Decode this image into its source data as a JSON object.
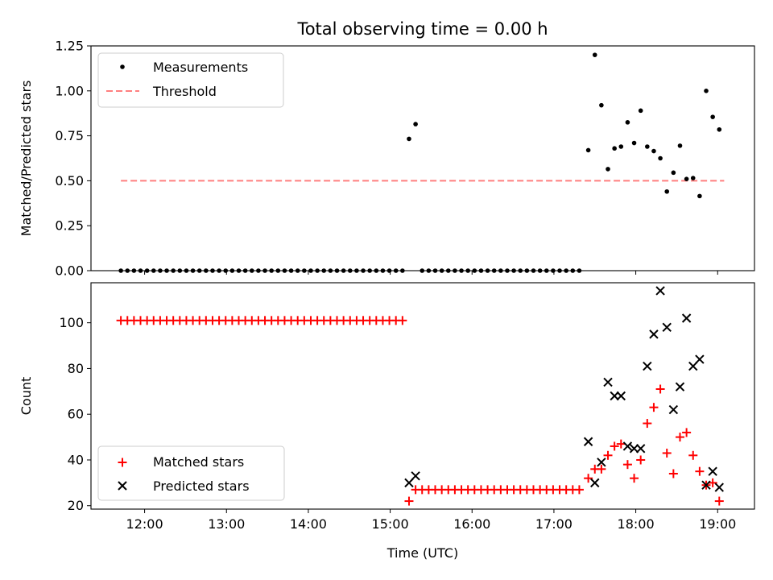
{
  "figure": {
    "title": "Total observing time = 0.00 h",
    "xlabel": "Time (UTC)",
    "x_ticks": [
      "12:00",
      "13:00",
      "14:00",
      "15:00",
      "16:00",
      "17:00",
      "18:00",
      "19:00"
    ],
    "x_tick_hours": [
      12,
      13,
      14,
      15,
      16,
      17,
      18,
      19
    ],
    "xlim_hours": [
      11.345,
      19.45
    ],
    "colors": {
      "measurement": "#000000",
      "threshold": "#ff7f7f",
      "matched": "#ff0000",
      "predicted": "#000000"
    }
  },
  "chart_data": [
    {
      "type": "scatter",
      "ylabel": "Matched/Predicted stars",
      "ylim": [
        0,
        1.25
      ],
      "y_ticks": [
        "0.00",
        "0.25",
        "0.50",
        "0.75",
        "1.00",
        "1.25"
      ],
      "legend": {
        "position": "top-left",
        "entries": [
          "Measurements",
          "Threshold"
        ]
      },
      "threshold": {
        "value": 0.5,
        "x_range_hours": [
          11.71,
          19.08
        ]
      },
      "series": [
        {
          "name": "Measurements",
          "points": [
            [
              11.71,
              0
            ],
            [
              11.79,
              0
            ],
            [
              11.87,
              0
            ],
            [
              11.95,
              0
            ],
            [
              12.03,
              0
            ],
            [
              12.11,
              0
            ],
            [
              12.19,
              0
            ],
            [
              12.27,
              0
            ],
            [
              12.35,
              0
            ],
            [
              12.43,
              0
            ],
            [
              12.51,
              0
            ],
            [
              12.59,
              0
            ],
            [
              12.67,
              0
            ],
            [
              12.75,
              0
            ],
            [
              12.83,
              0
            ],
            [
              12.91,
              0
            ],
            [
              12.99,
              0
            ],
            [
              13.07,
              0
            ],
            [
              13.15,
              0
            ],
            [
              13.23,
              0
            ],
            [
              13.31,
              0
            ],
            [
              13.39,
              0
            ],
            [
              13.47,
              0
            ],
            [
              13.55,
              0
            ],
            [
              13.63,
              0
            ],
            [
              13.71,
              0
            ],
            [
              13.79,
              0
            ],
            [
              13.87,
              0
            ],
            [
              13.95,
              0
            ],
            [
              14.03,
              0
            ],
            [
              14.11,
              0
            ],
            [
              14.19,
              0
            ],
            [
              14.27,
              0
            ],
            [
              14.35,
              0
            ],
            [
              14.43,
              0
            ],
            [
              14.51,
              0
            ],
            [
              14.59,
              0
            ],
            [
              14.67,
              0
            ],
            [
              14.75,
              0
            ],
            [
              14.83,
              0
            ],
            [
              14.91,
              0
            ],
            [
              14.99,
              0
            ],
            [
              15.07,
              0
            ],
            [
              15.15,
              0
            ],
            [
              15.23,
              0.733
            ],
            [
              15.31,
              0.815
            ],
            [
              15.39,
              0
            ],
            [
              15.47,
              0
            ],
            [
              15.55,
              0
            ],
            [
              15.63,
              0
            ],
            [
              15.71,
              0
            ],
            [
              15.79,
              0
            ],
            [
              15.87,
              0
            ],
            [
              15.95,
              0
            ],
            [
              16.03,
              0
            ],
            [
              16.11,
              0
            ],
            [
              16.19,
              0
            ],
            [
              16.27,
              0
            ],
            [
              16.35,
              0
            ],
            [
              16.43,
              0
            ],
            [
              16.51,
              0
            ],
            [
              16.59,
              0
            ],
            [
              16.67,
              0
            ],
            [
              16.75,
              0
            ],
            [
              16.83,
              0
            ],
            [
              16.91,
              0
            ],
            [
              16.99,
              0
            ],
            [
              17.07,
              0
            ],
            [
              17.15,
              0
            ],
            [
              17.23,
              0
            ],
            [
              17.31,
              0
            ],
            [
              17.42,
              0.67
            ],
            [
              17.5,
              1.2
            ],
            [
              17.58,
              0.92
            ],
            [
              17.66,
              0.565
            ],
            [
              17.74,
              0.68
            ],
            [
              17.82,
              0.69
            ],
            [
              17.9,
              0.825
            ],
            [
              17.98,
              0.71
            ],
            [
              18.06,
              0.89
            ],
            [
              18.14,
              0.69
            ],
            [
              18.22,
              0.665
            ],
            [
              18.3,
              0.625
            ],
            [
              18.38,
              0.44
            ],
            [
              18.46,
              0.545
            ],
            [
              18.54,
              0.695
            ],
            [
              18.62,
              0.51
            ],
            [
              18.7,
              0.515
            ],
            [
              18.78,
              0.415
            ],
            [
              18.86,
              1.0
            ],
            [
              18.94,
              0.855
            ],
            [
              19.02,
              0.785
            ]
          ]
        }
      ]
    },
    {
      "type": "scatter",
      "ylabel": "Count",
      "ylim": [
        18.5,
        117.5
      ],
      "y_ticks": [
        "20",
        "40",
        "60",
        "80",
        "100"
      ],
      "y_tick_values": [
        20,
        40,
        60,
        80,
        100
      ],
      "legend": {
        "position": "lower-left",
        "entries": [
          "Matched stars",
          "Predicted stars"
        ]
      },
      "series": [
        {
          "name": "Matched stars",
          "marker": "+",
          "points": [
            [
              11.71,
              101
            ],
            [
              11.79,
              101
            ],
            [
              11.87,
              101
            ],
            [
              11.95,
              101
            ],
            [
              12.03,
              101
            ],
            [
              12.11,
              101
            ],
            [
              12.19,
              101
            ],
            [
              12.27,
              101
            ],
            [
              12.35,
              101
            ],
            [
              12.43,
              101
            ],
            [
              12.51,
              101
            ],
            [
              12.59,
              101
            ],
            [
              12.67,
              101
            ],
            [
              12.75,
              101
            ],
            [
              12.83,
              101
            ],
            [
              12.91,
              101
            ],
            [
              12.99,
              101
            ],
            [
              13.07,
              101
            ],
            [
              13.15,
              101
            ],
            [
              13.23,
              101
            ],
            [
              13.31,
              101
            ],
            [
              13.39,
              101
            ],
            [
              13.47,
              101
            ],
            [
              13.55,
              101
            ],
            [
              13.63,
              101
            ],
            [
              13.71,
              101
            ],
            [
              13.79,
              101
            ],
            [
              13.87,
              101
            ],
            [
              13.95,
              101
            ],
            [
              14.03,
              101
            ],
            [
              14.11,
              101
            ],
            [
              14.19,
              101
            ],
            [
              14.27,
              101
            ],
            [
              14.35,
              101
            ],
            [
              14.43,
              101
            ],
            [
              14.51,
              101
            ],
            [
              14.59,
              101
            ],
            [
              14.67,
              101
            ],
            [
              14.75,
              101
            ],
            [
              14.83,
              101
            ],
            [
              14.91,
              101
            ],
            [
              14.99,
              101
            ],
            [
              15.07,
              101
            ],
            [
              15.15,
              101
            ],
            [
              15.23,
              22
            ],
            [
              15.31,
              27
            ],
            [
              15.39,
              27
            ],
            [
              15.47,
              27
            ],
            [
              15.55,
              27
            ],
            [
              15.63,
              27
            ],
            [
              15.71,
              27
            ],
            [
              15.79,
              27
            ],
            [
              15.87,
              27
            ],
            [
              15.95,
              27
            ],
            [
              16.03,
              27
            ],
            [
              16.11,
              27
            ],
            [
              16.19,
              27
            ],
            [
              16.27,
              27
            ],
            [
              16.35,
              27
            ],
            [
              16.43,
              27
            ],
            [
              16.51,
              27
            ],
            [
              16.59,
              27
            ],
            [
              16.67,
              27
            ],
            [
              16.75,
              27
            ],
            [
              16.83,
              27
            ],
            [
              16.91,
              27
            ],
            [
              16.99,
              27
            ],
            [
              17.07,
              27
            ],
            [
              17.15,
              27
            ],
            [
              17.23,
              27
            ],
            [
              17.31,
              27
            ],
            [
              17.42,
              32
            ],
            [
              17.5,
              36
            ],
            [
              17.58,
              36
            ],
            [
              17.66,
              42
            ],
            [
              17.74,
              46
            ],
            [
              17.82,
              47
            ],
            [
              17.9,
              38
            ],
            [
              17.98,
              32
            ],
            [
              18.06,
              40
            ],
            [
              18.14,
              56
            ],
            [
              18.22,
              63
            ],
            [
              18.3,
              71
            ],
            [
              18.38,
              43
            ],
            [
              18.46,
              34
            ],
            [
              18.54,
              50
            ],
            [
              18.62,
              52
            ],
            [
              18.7,
              42
            ],
            [
              18.78,
              35
            ],
            [
              18.86,
              29
            ],
            [
              18.94,
              30
            ],
            [
              19.02,
              22
            ]
          ]
        },
        {
          "name": "Predicted stars",
          "marker": "x",
          "points": [
            [
              15.23,
              30
            ],
            [
              15.31,
              33
            ],
            [
              17.42,
              48
            ],
            [
              17.5,
              30
            ],
            [
              17.58,
              39
            ],
            [
              17.66,
              74
            ],
            [
              17.74,
              68
            ],
            [
              17.82,
              68
            ],
            [
              17.9,
              46
            ],
            [
              17.98,
              45
            ],
            [
              18.06,
              45
            ],
            [
              18.14,
              81
            ],
            [
              18.22,
              95
            ],
            [
              18.3,
              114
            ],
            [
              18.38,
              98
            ],
            [
              18.46,
              62
            ],
            [
              18.54,
              72
            ],
            [
              18.62,
              102
            ],
            [
              18.7,
              81
            ],
            [
              18.78,
              84
            ],
            [
              18.86,
              29
            ],
            [
              18.94,
              35
            ],
            [
              19.02,
              28
            ]
          ]
        }
      ]
    }
  ]
}
